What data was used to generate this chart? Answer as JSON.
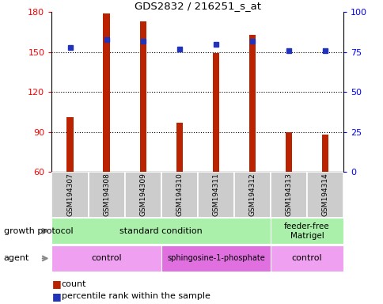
{
  "title": "GDS2832 / 216251_s_at",
  "samples": [
    "GSM194307",
    "GSM194308",
    "GSM194309",
    "GSM194310",
    "GSM194311",
    "GSM194312",
    "GSM194313",
    "GSM194314"
  ],
  "counts": [
    101,
    179,
    173,
    97,
    149,
    163,
    90,
    88
  ],
  "percentile_ranks": [
    78,
    83,
    82,
    77,
    80,
    82,
    76,
    76
  ],
  "ymin": 60,
  "ymax": 180,
  "yticks_left": [
    60,
    90,
    120,
    150,
    180
  ],
  "yticks_right": [
    0,
    25,
    50,
    75,
    100
  ],
  "bar_color": "#bb2200",
  "dot_color": "#2233bb",
  "bar_width": 0.18,
  "legend_count_label": "count",
  "legend_pct_label": "percentile rank within the sample",
  "growth_protocol_label": "growth protocol",
  "agent_label": "agent",
  "gp_color": "#aaf0aa",
  "agent_control_color": "#f0a0f0",
  "agent_sph_color": "#e070e0",
  "sample_box_color": "#cccccc"
}
